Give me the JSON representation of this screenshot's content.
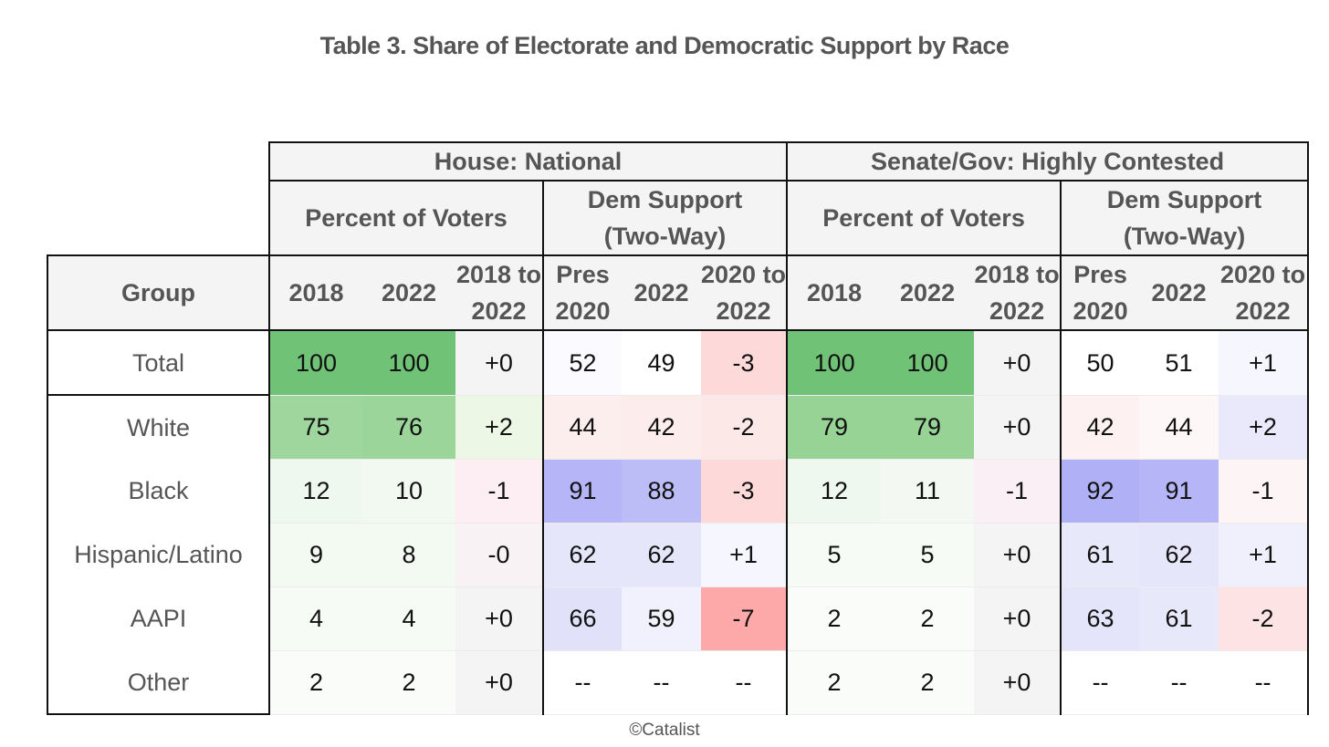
{
  "title": "Table 3. Share of Electorate and Democratic Support by Race",
  "credit": "©Catalist",
  "sections": {
    "house": "House: National",
    "senate": "Senate/Gov: Highly Contested"
  },
  "subsections": {
    "house_pct": "Percent of Voters",
    "house_dem_l1": "Dem Support",
    "house_dem_l2": "(Two-Way)",
    "senate_pct": "Percent of Voters",
    "senate_dem_l1": "Dem Support",
    "senate_dem_l2": "(Two-Way)"
  },
  "columns": {
    "group": "Group",
    "c1": "2018",
    "c2": "2022",
    "c3_l1": "2018 to",
    "c3_l2": "2022",
    "c4_l1": "Pres",
    "c4_l2": "2020",
    "c5": "2022",
    "c6_l1": "2020 to",
    "c6_l2": "2022",
    "c7": "2018",
    "c8": "2022",
    "c9_l1": "2018 to",
    "c9_l2": "2022",
    "c10_l1": "Pres",
    "c10_l2": "2020",
    "c11": "2022",
    "c12_l1": "2020 to",
    "c12_l2": "2022"
  },
  "rows": [
    {
      "group": "Total",
      "v": [
        "100",
        "100",
        "+0",
        "52",
        "49",
        "-3",
        "100",
        "100",
        "+0",
        "50",
        "51",
        "+1"
      ]
    },
    {
      "group": "White",
      "v": [
        "75",
        "76",
        "+2",
        "44",
        "42",
        "-2",
        "79",
        "79",
        "+0",
        "42",
        "44",
        "+2"
      ]
    },
    {
      "group": "Black",
      "v": [
        "12",
        "10",
        "-1",
        "91",
        "88",
        "-3",
        "12",
        "11",
        "-1",
        "92",
        "91",
        "-1"
      ]
    },
    {
      "group": "Hispanic/Latino",
      "v": [
        "9",
        "8",
        "-0",
        "62",
        "62",
        "+1",
        "5",
        "5",
        "+0",
        "61",
        "62",
        "+1"
      ]
    },
    {
      "group": "AAPI",
      "v": [
        "4",
        "4",
        "+0",
        "66",
        "59",
        "-7",
        "2",
        "2",
        "+0",
        "63",
        "61",
        "-2"
      ]
    },
    {
      "group": "Other",
      "v": [
        "2",
        "2",
        "+0",
        "--",
        "--",
        "--",
        "2",
        "2",
        "+0",
        "--",
        "--",
        "--"
      ]
    }
  ],
  "cell_colors": [
    [
      "#6fc276",
      "#6fc276",
      "#f4f4f4",
      "#fafaff",
      "#ffffff",
      "#fdd9d9",
      "#6fc276",
      "#6fc276",
      "#f4f4f4",
      "#ffffff",
      "#ffffff",
      "#f6f6fe"
    ],
    [
      "#9ed69d",
      "#9bd59a",
      "#ecf7e6",
      "#fdeeee",
      "#fdecec",
      "#fde8e8",
      "#96d395",
      "#96d395",
      "#f4f4f4",
      "#fdf1f1",
      "#fdf7f7",
      "#e9e9fb"
    ],
    [
      "#eff8ee",
      "#f2f9f1",
      "#fceef3",
      "#b5b5f7",
      "#bcbcf6",
      "#fdd9d9",
      "#eff8ee",
      "#f3f9f2",
      "#f9eff5",
      "#b0b0f6",
      "#b5b5f7",
      "#fdf5f5"
    ],
    [
      "#f2faf1",
      "#f3faf2",
      "#f9f2f5",
      "#e6e6fb",
      "#e6e6fb",
      "#f6f6fe",
      "#f6fbf5",
      "#f6fbf5",
      "#f4f4f4",
      "#e8e8fb",
      "#e6e6fb",
      "#f0f0fc"
    ],
    [
      "#f6fbf5",
      "#f6fbf5",
      "#f4f4f4",
      "#e1e1fa",
      "#f1f1fd",
      "#fea9a9",
      "#f9fcf8",
      "#f9fcf8",
      "#f4f4f4",
      "#e4e4fa",
      "#e8e8fb",
      "#fde3e3"
    ],
    [
      "#f9fcf8",
      "#f9fcf8",
      "#f4f4f4",
      "#ffffff",
      "#ffffff",
      "#ffffff",
      "#f9fcf8",
      "#f9fcf8",
      "#f4f4f4",
      "#ffffff",
      "#ffffff",
      "#ffffff"
    ]
  ]
}
